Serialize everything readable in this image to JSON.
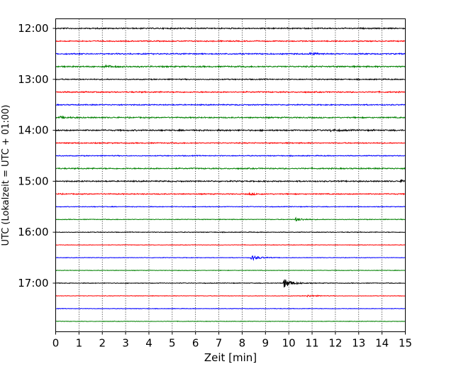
{
  "chart_data": {
    "type": "line",
    "title": "",
    "xlabel": "Zeit  [min]",
    "ylabel": "UTC (Lokalzeit = UTC + 01:00)",
    "xlim": [
      0,
      15
    ],
    "x_ticks": [
      "0",
      "1",
      "2",
      "3",
      "4",
      "5",
      "6",
      "7",
      "8",
      "9",
      "10",
      "11",
      "12",
      "13",
      "14",
      "15"
    ],
    "y_tick_labels": [
      "12:00",
      "13:00",
      "14:00",
      "15:00",
      "16:00",
      "17:00"
    ],
    "grid": "vertical dotted",
    "trace_interval_minutes": 15,
    "trace_start_times": [
      "12:00",
      "12:15",
      "12:30",
      "12:45",
      "13:00",
      "13:15",
      "13:30",
      "13:45",
      "14:00",
      "14:15",
      "14:30",
      "14:45",
      "15:00",
      "15:15",
      "15:30",
      "15:45",
      "16:00",
      "16:15",
      "16:30",
      "16:45",
      "17:00",
      "17:15",
      "17:30",
      "17:45"
    ],
    "trace_colors": [
      "#000000",
      "#ff0000",
      "#0000ff",
      "#008000"
    ],
    "series": [
      {
        "start": "12:00",
        "color": "#000000",
        "noise_level": 0.7,
        "events": []
      },
      {
        "start": "12:15",
        "color": "#ff0000",
        "noise_level": 0.6,
        "events": []
      },
      {
        "start": "12:30",
        "color": "#0000ff",
        "noise_level": 0.7,
        "events": [
          {
            "minute": 10.9,
            "amplitude": 1.3
          }
        ]
      },
      {
        "start": "12:45",
        "color": "#008000",
        "noise_level": 0.8,
        "events": [
          {
            "minute": 2.1,
            "amplitude": 1.4
          }
        ]
      },
      {
        "start": "13:00",
        "color": "#000000",
        "noise_level": 0.6,
        "events": []
      },
      {
        "start": "13:15",
        "color": "#ff0000",
        "noise_level": 0.7,
        "events": []
      },
      {
        "start": "13:30",
        "color": "#0000ff",
        "noise_level": 0.6,
        "events": []
      },
      {
        "start": "13:45",
        "color": "#008000",
        "noise_level": 0.7,
        "events": [
          {
            "minute": 0.2,
            "amplitude": 1.2
          }
        ]
      },
      {
        "start": "14:00",
        "color": "#000000",
        "noise_level": 0.8,
        "events": [
          {
            "minute": 11.8,
            "amplitude": 1.2
          }
        ]
      },
      {
        "start": "14:15",
        "color": "#ff0000",
        "noise_level": 0.6,
        "events": []
      },
      {
        "start": "14:30",
        "color": "#0000ff",
        "noise_level": 0.5,
        "events": []
      },
      {
        "start": "14:45",
        "color": "#008000",
        "noise_level": 0.7,
        "events": []
      },
      {
        "start": "15:00",
        "color": "#000000",
        "noise_level": 0.7,
        "events": [
          {
            "minute": 14.8,
            "amplitude": 1.3
          }
        ]
      },
      {
        "start": "15:15",
        "color": "#ff0000",
        "noise_level": 0.6,
        "events": [
          {
            "minute": 8.3,
            "amplitude": 1.2
          }
        ]
      },
      {
        "start": "15:30",
        "color": "#0000ff",
        "noise_level": 0.4,
        "events": []
      },
      {
        "start": "15:45",
        "color": "#008000",
        "noise_level": 0.4,
        "events": [
          {
            "minute": 10.3,
            "amplitude": 2.2
          }
        ]
      },
      {
        "start": "16:00",
        "color": "#000000",
        "noise_level": 0.4,
        "events": []
      },
      {
        "start": "16:15",
        "color": "#ff0000",
        "noise_level": 0.3,
        "events": []
      },
      {
        "start": "16:30",
        "color": "#0000ff",
        "noise_level": 0.3,
        "events": [
          {
            "minute": 8.4,
            "amplitude": 3.5
          }
        ]
      },
      {
        "start": "16:45",
        "color": "#008000",
        "noise_level": 0.3,
        "events": []
      },
      {
        "start": "17:00",
        "color": "#000000",
        "noise_level": 0.4,
        "events": [
          {
            "minute": 9.8,
            "amplitude": 6.5
          }
        ]
      },
      {
        "start": "17:15",
        "color": "#ff0000",
        "noise_level": 0.3,
        "events": [
          {
            "minute": 10.8,
            "amplitude": 1.2
          }
        ]
      },
      {
        "start": "17:30",
        "color": "#0000ff",
        "noise_level": 0.3,
        "events": []
      },
      {
        "start": "17:45",
        "color": "#008000",
        "noise_level": 0.3,
        "events": []
      }
    ]
  }
}
